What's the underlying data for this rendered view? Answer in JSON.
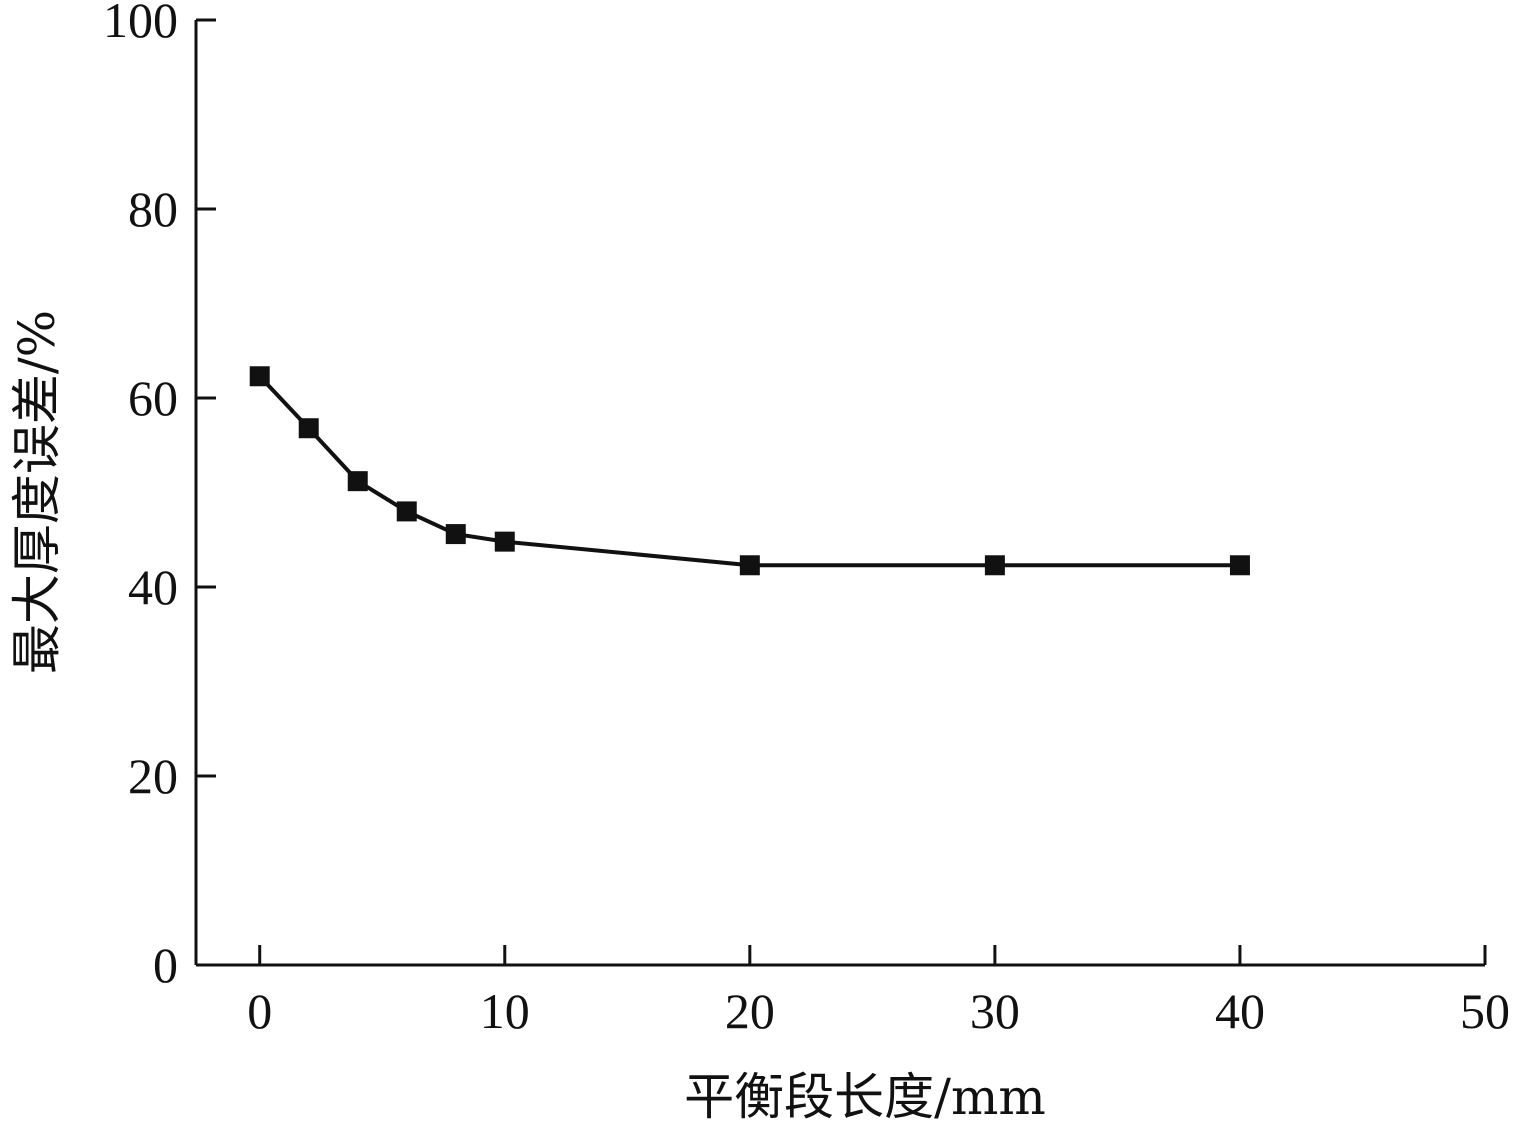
{
  "chart_data": {
    "type": "line",
    "title": "",
    "xlabel": "平衡段长度/mm",
    "ylabel": "最大厚度误差/%",
    "xlim": [
      -2.6,
      50
    ],
    "ylim": [
      0,
      100
    ],
    "xticks": [
      0,
      10,
      20,
      30,
      40,
      50
    ],
    "yticks": [
      0,
      20,
      40,
      60,
      80,
      100
    ],
    "grid": false,
    "legend": "none",
    "colors": {
      "line": "#111111",
      "marker": "#111111",
      "axis": "#111111"
    },
    "series": [
      {
        "x": [
          0,
          2,
          4,
          6,
          8,
          10,
          20,
          30,
          40
        ],
        "y": [
          62.3,
          56.8,
          51.2,
          48.0,
          45.6,
          44.8,
          42.3,
          42.3,
          42.3
        ]
      }
    ]
  }
}
